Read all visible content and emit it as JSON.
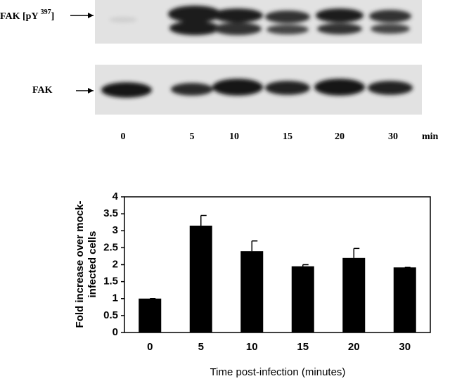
{
  "blot": {
    "panels": [
      {
        "label_parts": [
          "FAK [pY ",
          "397",
          "]"
        ]
      },
      {
        "label_parts": [
          "FAK"
        ]
      }
    ],
    "lanes": [
      "0",
      "5",
      "10",
      "15",
      "20",
      "30"
    ],
    "lane_unit": "min"
  },
  "chart_data": {
    "type": "bar",
    "y_label_lines": [
      "Fold increase over mock-",
      "infected cells"
    ],
    "x_label": "Time post-infection (minutes)",
    "categories": [
      "0",
      "5",
      "10",
      "15",
      "20",
      "30"
    ],
    "values": [
      1,
      3.15,
      2.4,
      1.95,
      2.2,
      1.92
    ],
    "errors": [
      0,
      0.3,
      0.3,
      0.05,
      0.28,
      0
    ],
    "color": "#000000",
    "ylim": [
      0,
      4
    ],
    "yticks": [
      0,
      0.5,
      1,
      1.5,
      2,
      2.5,
      3,
      3.5,
      4
    ]
  }
}
